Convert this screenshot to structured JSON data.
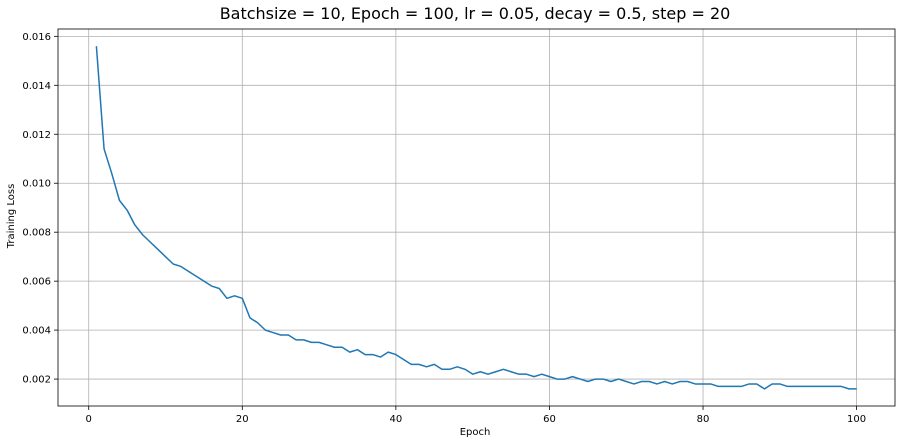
{
  "chart_data": {
    "type": "line",
    "title": "Batchsize = 10, Epoch = 100, lr = 0.05, decay = 0.5, step = 20",
    "xlabel": "Epoch",
    "ylabel": "Training Loss",
    "xlim": [
      -4,
      105
    ],
    "ylim": [
      0.0009,
      0.0163
    ],
    "xticks": [
      0,
      20,
      40,
      60,
      80,
      100
    ],
    "xtick_labels": [
      "0",
      "20",
      "40",
      "60",
      "80",
      "100"
    ],
    "yticks": [
      0.002,
      0.004,
      0.006,
      0.008,
      0.01,
      0.012,
      0.014,
      0.016
    ],
    "ytick_labels": [
      "0.002",
      "0.004",
      "0.006",
      "0.008",
      "0.010",
      "0.012",
      "0.014",
      "0.016"
    ],
    "grid": true,
    "line_color": "#1f77b4",
    "grid_color": "#b0b0b0",
    "series": [
      {
        "x": [
          1,
          2,
          3,
          4,
          5,
          6,
          7,
          8,
          9,
          10,
          11,
          12,
          13,
          14,
          15,
          16,
          17,
          18,
          19,
          20,
          21,
          22,
          23,
          24,
          25,
          26,
          27,
          28,
          29,
          30,
          31,
          32,
          33,
          34,
          35,
          36,
          37,
          38,
          39,
          40,
          41,
          42,
          43,
          44,
          45,
          46,
          47,
          48,
          49,
          50,
          51,
          52,
          53,
          54,
          55,
          56,
          57,
          58,
          59,
          60,
          61,
          62,
          63,
          64,
          65,
          66,
          67,
          68,
          69,
          70,
          71,
          72,
          73,
          74,
          75,
          76,
          77,
          78,
          79,
          80,
          81,
          82,
          83,
          84,
          85,
          86,
          87,
          88,
          89,
          90,
          91,
          92,
          93,
          94,
          95,
          96,
          97,
          98,
          99,
          100
        ],
        "values": [
          0.0156,
          0.0114,
          0.0104,
          0.0093,
          0.0089,
          0.0083,
          0.0079,
          0.0076,
          0.0073,
          0.007,
          0.0067,
          0.0066,
          0.0064,
          0.0062,
          0.006,
          0.0058,
          0.0057,
          0.0053,
          0.0054,
          0.0053,
          0.0045,
          0.0043,
          0.004,
          0.0039,
          0.0038,
          0.0038,
          0.0036,
          0.0036,
          0.0035,
          0.0035,
          0.0034,
          0.0033,
          0.0033,
          0.0031,
          0.0032,
          0.003,
          0.003,
          0.0029,
          0.0031,
          0.003,
          0.0028,
          0.0026,
          0.0026,
          0.0025,
          0.0026,
          0.0024,
          0.0024,
          0.0025,
          0.0024,
          0.0022,
          0.0023,
          0.0022,
          0.0023,
          0.0024,
          0.0023,
          0.0022,
          0.0022,
          0.0021,
          0.0022,
          0.0021,
          0.002,
          0.002,
          0.0021,
          0.002,
          0.0019,
          0.002,
          0.002,
          0.0019,
          0.002,
          0.0019,
          0.0018,
          0.0019,
          0.0019,
          0.0018,
          0.0019,
          0.0018,
          0.0019,
          0.0019,
          0.0018,
          0.0018,
          0.0018,
          0.0017,
          0.0017,
          0.0017,
          0.0017,
          0.0018,
          0.0018,
          0.0016,
          0.0018,
          0.0018,
          0.0017,
          0.0017,
          0.0017,
          0.0017,
          0.0017,
          0.0017,
          0.0017,
          0.0017,
          0.0016,
          0.0016
        ]
      }
    ]
  }
}
